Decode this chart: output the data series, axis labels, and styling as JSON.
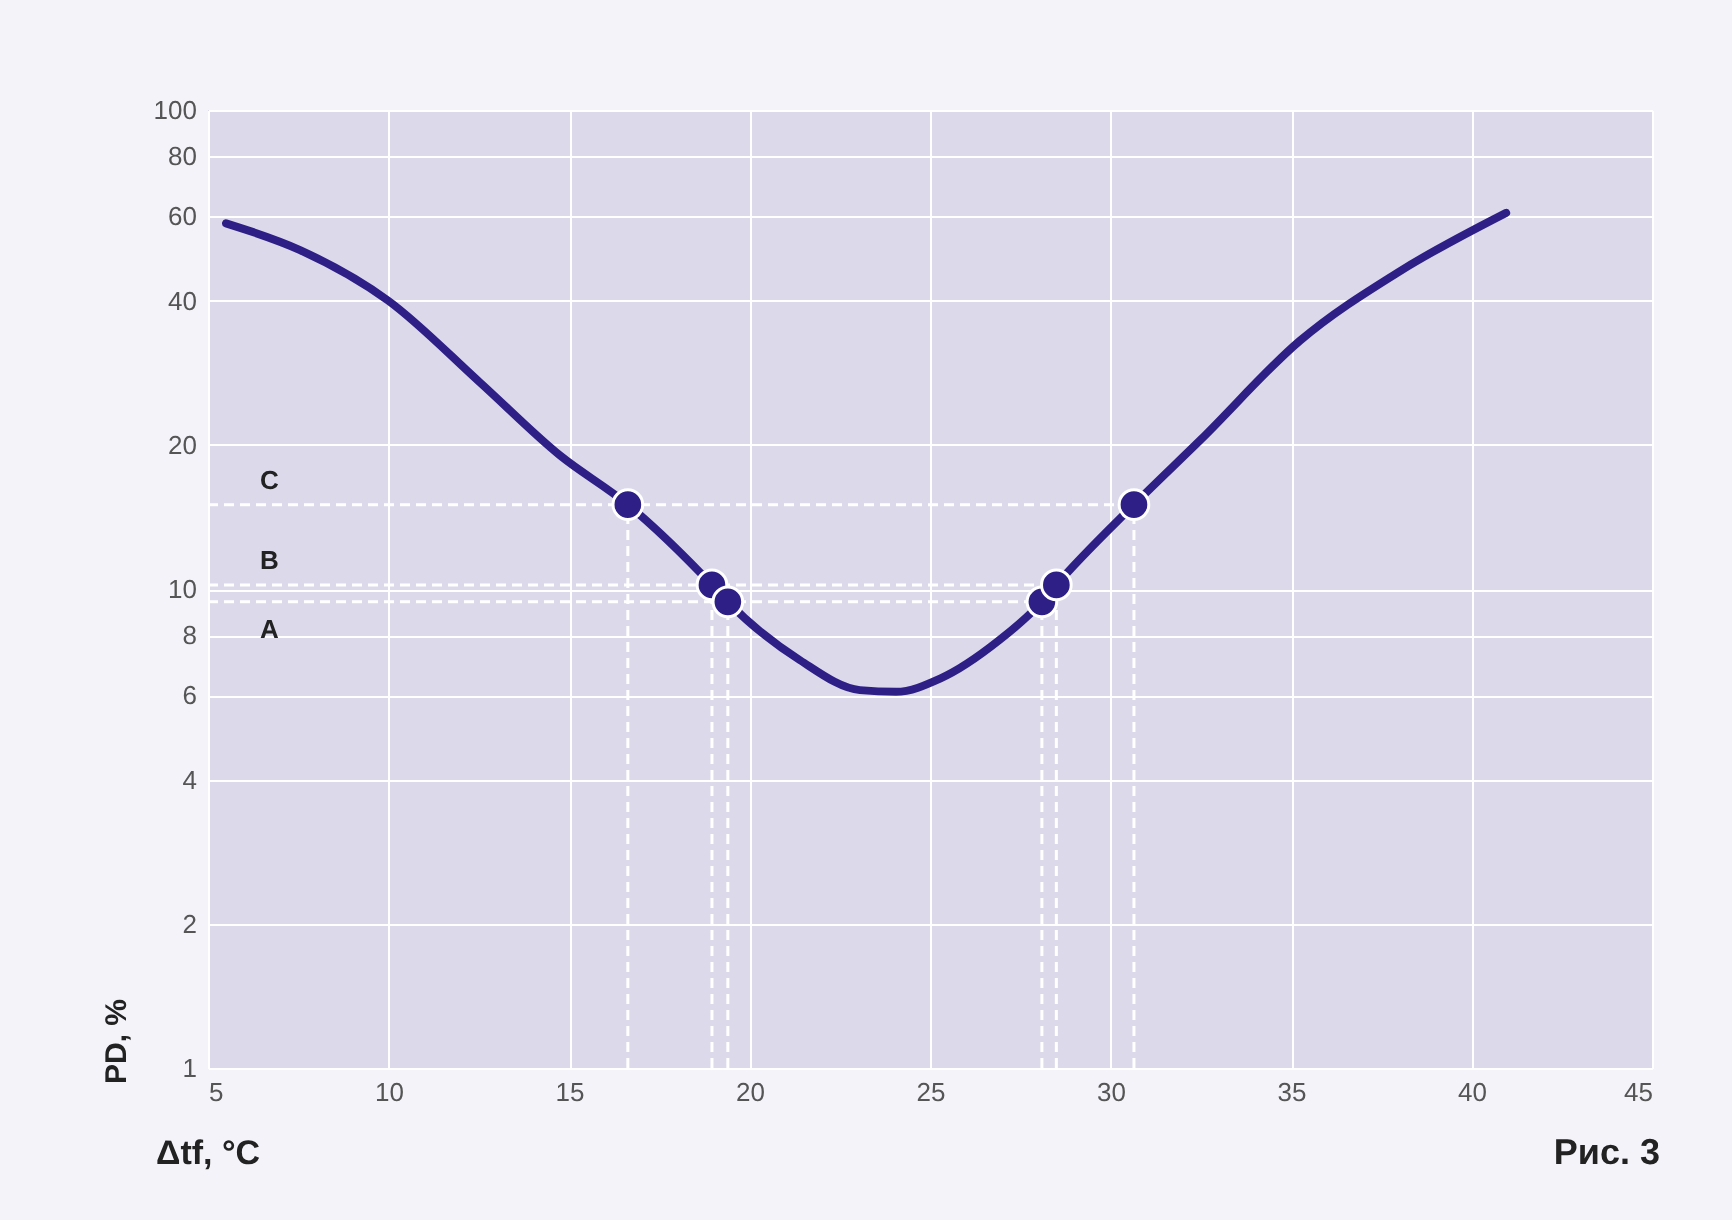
{
  "chart_data": {
    "type": "line",
    "xlabel": "Δtf, °C",
    "ylabel": "PD, %",
    "annotations": [
      "Рис. 3"
    ],
    "x": [
      5.5,
      7.55,
      9.99,
      12.53,
      14.75,
      16.63,
      18.96,
      19.4,
      21.4,
      23.06,
      24.06,
      25.28,
      26.9,
      28.1,
      28.5,
      30.65,
      32.5,
      35.25,
      38.0,
      40.96
    ],
    "series": [
      {
        "color": "#2e1f86",
        "values": [
          58,
          51,
          40,
          27,
          19,
          15,
          10.2,
          9.4,
          7.1,
          6.15,
          6.1,
          6.5,
          7.8,
          9.4,
          10.2,
          15,
          20.5,
          33,
          46,
          61
        ]
      },
      {
        "type": "scatter",
        "marker": "circle",
        "color": "#2e1f86",
        "x": [
          16.63,
          18.96,
          19.4,
          28.1,
          28.5,
          30.65
        ],
        "values": [
          15,
          10.2,
          9.4,
          9.4,
          10.2,
          15
        ]
      }
    ],
    "ref_lines": [
      {
        "axis": "y",
        "value": 15,
        "label": "C",
        "color": "#ffffff",
        "line_style": "dashed"
      },
      {
        "axis": "y",
        "value": 10.2,
        "label": "B",
        "color": "#ffffff",
        "line_style": "dashed"
      },
      {
        "axis": "y",
        "value": 9.4,
        "label": "A",
        "color": "#ffffff",
        "line_style": "dashed"
      },
      {
        "axis": "x",
        "value": 16.63,
        "color": "#ffffff",
        "line_style": "dashed"
      },
      {
        "axis": "x",
        "value": 18.96,
        "color": "#ffffff",
        "line_style": "dashed"
      },
      {
        "axis": "x",
        "value": 19.4,
        "color": "#ffffff",
        "line_style": "dashed"
      },
      {
        "axis": "x",
        "value": 28.1,
        "color": "#ffffff",
        "line_style": "dashed"
      },
      {
        "axis": "x",
        "value": 28.5,
        "color": "#ffffff",
        "line_style": "dashed"
      },
      {
        "axis": "x",
        "value": 30.65,
        "color": "#ffffff",
        "line_style": "dashed"
      }
    ],
    "log": "y",
    "line_style": "solid",
    "grid": true,
    "xlim": [
      5,
      45
    ],
    "xticks": [
      5,
      10,
      15,
      20,
      25,
      30,
      35,
      40,
      45
    ],
    "ylim": [
      1,
      100
    ],
    "yticks": [
      1,
      2,
      4,
      6,
      8,
      10,
      20,
      40,
      60,
      80,
      100
    ]
  }
}
